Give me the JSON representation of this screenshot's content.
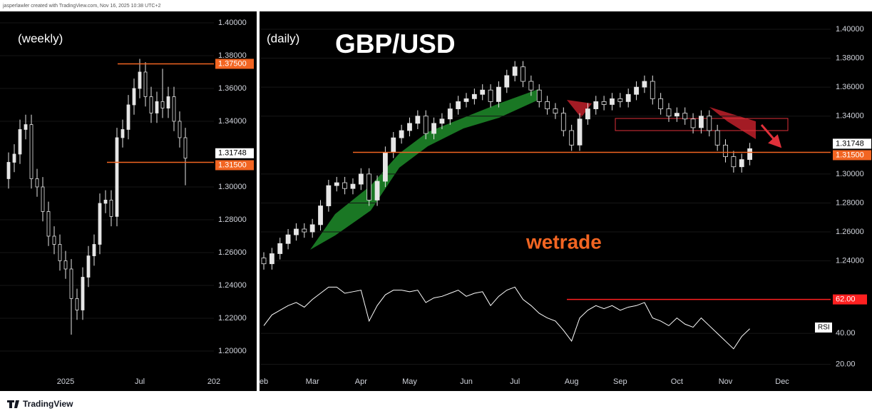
{
  "header": {
    "attribution": "jasperlawler created with TradingView.com, Nov 16, 2025 10:38 UTC+2"
  },
  "chart_data": [
    {
      "type": "candlestick",
      "title": "(weekly)",
      "color": "#e6e6e6",
      "categories": [
        null,
        null,
        null,
        null,
        null,
        null,
        null,
        null,
        null,
        null,
        "2025",
        null,
        null,
        null,
        null,
        null,
        null,
        null,
        null,
        null,
        null,
        null,
        null,
        "Jul",
        null,
        null,
        null,
        null,
        null,
        null,
        null,
        null,
        null,
        null,
        null,
        null,
        "202"
      ],
      "open": [
        1.305,
        1.315,
        1.32,
        1.335,
        1.338,
        1.305,
        1.3,
        1.285,
        1.27,
        1.265,
        1.255,
        1.25,
        1.232,
        1.225,
        1.245,
        1.258,
        1.265,
        1.29,
        1.292,
        1.282,
        1.33,
        1.335,
        1.35,
        1.36,
        1.37,
        1.355,
        1.345,
        1.352,
        1.348,
        1.355,
        1.34,
        1.33,
        null,
        null,
        null,
        null,
        null
      ],
      "high": [
        1.321,
        1.326,
        1.341,
        1.344,
        1.344,
        1.311,
        1.306,
        1.291,
        1.276,
        1.271,
        1.261,
        1.256,
        1.238,
        1.251,
        1.264,
        1.271,
        1.296,
        1.298,
        1.298,
        1.336,
        1.341,
        1.356,
        1.366,
        1.378,
        1.376,
        1.361,
        1.358,
        1.372,
        1.361,
        1.361,
        1.346,
        1.336,
        null,
        null,
        null,
        null,
        null
      ],
      "low": [
        1.299,
        1.309,
        1.314,
        1.329,
        1.299,
        1.294,
        1.279,
        1.264,
        1.259,
        1.249,
        1.244,
        1.21,
        1.219,
        1.219,
        1.239,
        1.252,
        1.259,
        1.284,
        1.276,
        1.276,
        1.324,
        1.329,
        1.344,
        1.354,
        1.349,
        1.339,
        1.339,
        1.342,
        1.342,
        1.334,
        1.324,
        1.301,
        null,
        null,
        null,
        null,
        null
      ],
      "close": [
        1.315,
        1.32,
        1.335,
        1.338,
        1.305,
        1.3,
        1.285,
        1.27,
        1.265,
        1.255,
        1.25,
        1.232,
        1.225,
        1.245,
        1.258,
        1.265,
        1.29,
        1.292,
        1.282,
        1.33,
        1.335,
        1.35,
        1.36,
        1.37,
        1.355,
        1.345,
        1.352,
        1.348,
        1.355,
        1.34,
        1.33,
        1.3175,
        null,
        null,
        null,
        null,
        null
      ],
      "ylim": [
        1.19,
        1.4065
      ],
      "yticks": [
        {
          "value": 1.4,
          "label": "1.40000"
        },
        {
          "value": 1.38,
          "label": "1.38000"
        },
        {
          "value": 1.36,
          "label": "1.36000"
        },
        {
          "value": 1.34,
          "label": "1.34000"
        },
        {
          "value": 1.3,
          "label": "1.30000"
        },
        {
          "value": 1.28,
          "label": "1.28000"
        },
        {
          "value": 1.26,
          "label": "1.26000"
        },
        {
          "value": 1.24,
          "label": "1.24000"
        },
        {
          "value": 1.22,
          "label": "1.22000"
        },
        {
          "value": 1.2,
          "label": "1.20000"
        }
      ],
      "grid": true,
      "levels": [
        {
          "value": 1.375,
          "label": "1.37500",
          "color": "#f26522"
        },
        {
          "value": 1.315,
          "label": "1.31500",
          "color": "#f26522"
        }
      ],
      "last_price": {
        "value": 1.31748,
        "label": "1.31748"
      }
    },
    {
      "type": "candlestick",
      "title": "GBP/USD",
      "subtitle": "(daily)",
      "watermark": "wetrade",
      "color": "#e6e6e6",
      "categories": [
        "eb",
        null,
        null,
        null,
        null,
        null,
        "Mar",
        null,
        null,
        null,
        null,
        null,
        "Apr",
        null,
        null,
        null,
        null,
        null,
        "May",
        null,
        null,
        null,
        null,
        null,
        null,
        "Jun",
        null,
        null,
        null,
        null,
        null,
        "Jul",
        null,
        null,
        null,
        null,
        null,
        null,
        "Aug",
        null,
        null,
        null,
        null,
        null,
        "Sep",
        null,
        null,
        null,
        null,
        null,
        null,
        "Oct",
        null,
        null,
        null,
        null,
        null,
        "Nov",
        null,
        null,
        null,
        null,
        null,
        null,
        "Dec"
      ],
      "open": [
        1.242,
        1.238,
        1.245,
        1.252,
        1.258,
        1.262,
        1.26,
        1.265,
        1.278,
        1.292,
        1.294,
        1.29,
        1.293,
        1.3,
        1.282,
        1.295,
        1.315,
        1.325,
        1.33,
        1.335,
        1.34,
        1.328,
        1.335,
        1.338,
        1.345,
        1.35,
        1.352,
        1.355,
        1.358,
        1.35,
        1.36,
        1.368,
        1.374,
        1.364,
        1.358,
        1.35,
        1.345,
        1.342,
        1.33,
        1.32,
        1.338,
        1.345,
        1.35,
        1.348,
        1.352,
        1.35,
        1.355,
        1.36,
        1.364,
        1.352,
        1.345,
        1.34,
        1.342,
        1.338,
        1.332,
        1.34,
        1.33,
        1.32,
        1.312,
        1.305,
        1.31,
        null,
        null,
        null,
        null
      ],
      "high": [
        1.246,
        1.249,
        1.256,
        1.262,
        1.266,
        1.266,
        1.269,
        1.282,
        1.296,
        1.298,
        1.298,
        1.297,
        1.304,
        1.304,
        1.299,
        1.319,
        1.329,
        1.334,
        1.339,
        1.344,
        1.344,
        1.339,
        1.342,
        1.349,
        1.354,
        1.356,
        1.359,
        1.362,
        1.362,
        1.364,
        1.372,
        1.378,
        1.378,
        1.368,
        1.362,
        1.354,
        1.349,
        1.346,
        1.334,
        1.342,
        1.349,
        1.354,
        1.354,
        1.356,
        1.356,
        1.359,
        1.364,
        1.368,
        1.368,
        1.356,
        1.349,
        1.346,
        1.346,
        1.342,
        1.344,
        1.344,
        1.334,
        1.324,
        1.316,
        1.314,
        1.3215,
        null,
        null,
        null,
        null
      ],
      "low": [
        1.234,
        1.234,
        1.241,
        1.248,
        1.254,
        1.256,
        1.256,
        1.261,
        1.274,
        1.288,
        1.286,
        1.286,
        1.289,
        1.278,
        1.278,
        1.291,
        1.311,
        1.321,
        1.326,
        1.331,
        1.324,
        1.324,
        1.331,
        1.334,
        1.341,
        1.346,
        1.348,
        1.351,
        1.346,
        1.346,
        1.356,
        1.364,
        1.36,
        1.354,
        1.346,
        1.341,
        1.338,
        1.326,
        1.316,
        1.316,
        1.334,
        1.341,
        1.344,
        1.344,
        1.346,
        1.346,
        1.351,
        1.356,
        1.348,
        1.341,
        1.336,
        1.336,
        1.334,
        1.328,
        1.328,
        1.326,
        1.316,
        1.308,
        1.301,
        1.301,
        1.306,
        null,
        null,
        null,
        null
      ],
      "close": [
        1.238,
        1.245,
        1.252,
        1.258,
        1.262,
        1.26,
        1.265,
        1.278,
        1.292,
        1.294,
        1.29,
        1.293,
        1.3,
        1.282,
        1.295,
        1.315,
        1.325,
        1.33,
        1.335,
        1.34,
        1.328,
        1.335,
        1.338,
        1.345,
        1.35,
        1.352,
        1.355,
        1.358,
        1.35,
        1.36,
        1.368,
        1.374,
        1.364,
        1.358,
        1.35,
        1.345,
        1.342,
        1.33,
        1.32,
        1.338,
        1.345,
        1.35,
        1.348,
        1.352,
        1.35,
        1.355,
        1.36,
        1.364,
        1.352,
        1.345,
        1.34,
        1.342,
        1.338,
        1.332,
        1.34,
        1.33,
        1.32,
        1.312,
        1.305,
        1.31,
        1.3175,
        null,
        null,
        null,
        null
      ],
      "ylim": [
        1.228,
        1.4118
      ],
      "yticks": [
        {
          "value": 1.4,
          "label": "1.40000"
        },
        {
          "value": 1.38,
          "label": "1.38000"
        },
        {
          "value": 1.36,
          "label": "1.36000"
        },
        {
          "value": 1.34,
          "label": "1.34000"
        },
        {
          "value": 1.3,
          "label": "1.30000"
        },
        {
          "value": 1.28,
          "label": "1.28000"
        },
        {
          "value": 1.26,
          "label": "1.26000"
        },
        {
          "value": 1.24,
          "label": "1.24000"
        }
      ],
      "grid": true,
      "levels": [
        {
          "value": 1.315,
          "label": "1.31500",
          "color": "#f26522"
        }
      ],
      "last_price": {
        "value": 1.31748,
        "label": "1.31748"
      },
      "rsi": {
        "name": "RSI",
        "color": "#ffffff",
        "values": [
          45,
          52,
          55,
          58,
          60,
          57,
          62,
          66,
          70,
          70,
          66,
          67,
          68,
          48,
          58,
          65,
          68,
          68,
          67,
          68,
          60,
          63,
          64,
          66,
          68,
          64,
          66,
          67,
          58,
          64,
          68,
          70,
          62,
          58,
          53,
          50,
          48,
          42,
          35,
          50,
          55,
          58,
          56,
          58,
          55,
          57,
          58,
          60,
          50,
          48,
          45,
          50,
          46,
          44,
          50,
          45,
          40,
          35,
          30,
          38,
          43,
          null,
          null,
          null,
          null
        ],
        "ylim": [
          11,
          72
        ],
        "yticks": [
          {
            "value": 40,
            "label": "40.00"
          },
          {
            "value": 20,
            "label": "20.00"
          }
        ],
        "level": {
          "value": 62,
          "label": "62.00",
          "color": "#ff2020"
        }
      }
    }
  ],
  "footer": {
    "brand": "TradingView"
  }
}
